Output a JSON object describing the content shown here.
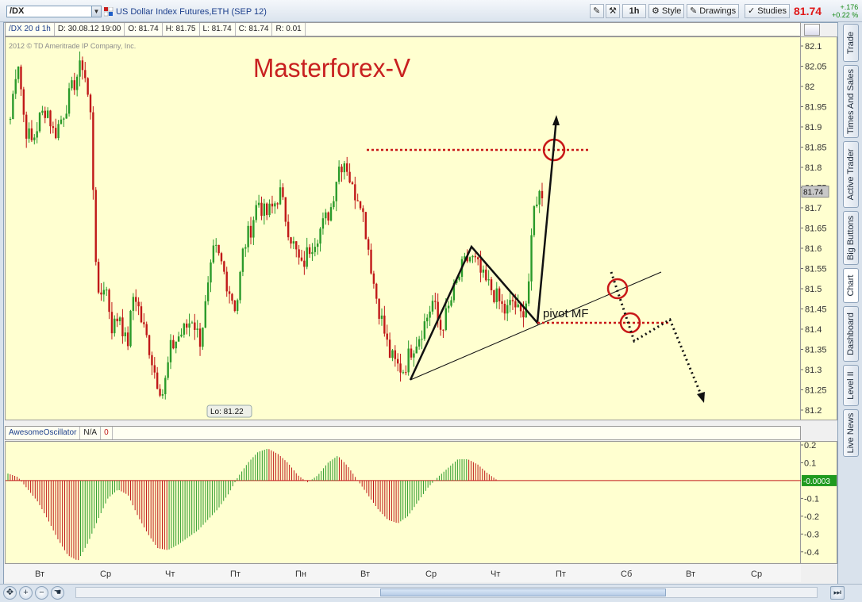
{
  "toolbar": {
    "symbol": "/DX",
    "description": "US Dollar Index Futures,ETH (SEP 12)",
    "interval_button": "1h",
    "style_button": "Style",
    "drawings_button": "Drawings",
    "studies_button": "Studies",
    "last_price": "81.74",
    "net_change": "+.176",
    "net_change_pct": "+0.22 %"
  },
  "info_bar": {
    "timeframe": "/DX 20 d 1h",
    "date": "D: 30.08.12 19:00",
    "open": "O: 81.74",
    "high": "H: 81.75",
    "low": "L: 81.74",
    "close": "C: 81.74",
    "range": "R: 0.01"
  },
  "watermark": "2012 © TD Ameritrade IP Company, Inc.",
  "overlay_title": "Masterforex-V",
  "annotations": {
    "pivot_label": "pivot MF",
    "low_label": "Lo: 81.22",
    "price_marker": "81.74",
    "osc_marker": "-0.0003"
  },
  "oscillator": {
    "name": "AwesomeOscillator",
    "param": "N/A",
    "value": "0"
  },
  "side_tabs": [
    "Trade",
    "Times And Sales",
    "Active Trader",
    "Big Buttons",
    "Chart",
    "Dashboard",
    "Level II",
    "Live News"
  ],
  "colors": {
    "bull": "#2a9a2a",
    "bear": "#c01818",
    "background": "#ffffd0",
    "title": "#c82020"
  },
  "chart_data": {
    "type": "candlestick",
    "y_axis_ticks": [
      "82.1",
      "82.05",
      "82",
      "81.95",
      "81.9",
      "81.85",
      "81.8",
      "81.75",
      "81.7",
      "81.65",
      "81.6",
      "81.55",
      "81.5",
      "81.45",
      "81.4",
      "81.35",
      "81.3",
      "81.25",
      "81.2"
    ],
    "x_axis_ticks": [
      "Вт",
      "Ср",
      "Чт",
      "Пт",
      "Пн",
      "Вт",
      "Ср",
      "Чт",
      "Пт",
      "Сб",
      "Вт",
      "Ср"
    ],
    "osc_axis_ticks": [
      "0.2",
      "0.1",
      "-0.1",
      "-0.2",
      "-0.3",
      "-0.4"
    ],
    "ylim": [
      81.2,
      82.1
    ],
    "osc_ylim": [
      -0.45,
      0.2
    ],
    "close_path": [
      81.92,
      82.08,
      81.9,
      81.86,
      81.92,
      81.95,
      81.88,
      81.92,
      81.97,
      82.02,
      82.06,
      81.93,
      81.46,
      81.52,
      81.4,
      81.44,
      81.35,
      81.5,
      81.42,
      81.36,
      81.28,
      81.24,
      81.35,
      81.38,
      81.4,
      81.43,
      81.37,
      81.48,
      81.6,
      81.56,
      81.5,
      81.45,
      81.6,
      81.65,
      81.72,
      81.68,
      81.7,
      81.74,
      81.66,
      81.6,
      81.55,
      81.6,
      81.63,
      81.66,
      81.7,
      81.8,
      81.82,
      81.74,
      81.73,
      81.62,
      81.5,
      81.42,
      81.34,
      81.31,
      81.3,
      81.35,
      81.38,
      81.42,
      81.47,
      81.4,
      81.44,
      81.5,
      81.55,
      81.58,
      81.56,
      81.52,
      81.5,
      81.47,
      81.44,
      81.47,
      81.43,
      81.48,
      81.72,
      81.74
    ],
    "ao_path": [
      0.04,
      0.02,
      -0.05,
      -0.12,
      -0.22,
      -0.33,
      -0.42,
      -0.45,
      -0.35,
      -0.22,
      -0.1,
      -0.05,
      -0.08,
      -0.2,
      -0.3,
      -0.38,
      -0.39,
      -0.36,
      -0.32,
      -0.28,
      -0.22,
      -0.16,
      -0.08,
      0.02,
      0.1,
      0.16,
      0.18,
      0.15,
      0.1,
      0.03,
      -0.01,
      0.03,
      0.1,
      0.14,
      0.08,
      0.0,
      -0.08,
      -0.16,
      -0.22,
      -0.24,
      -0.2,
      -0.12,
      -0.04,
      0.02,
      0.07,
      0.12,
      0.12,
      0.09,
      0.04,
      0.0,
      0.0,
      0.0,
      0.0
    ],
    "levels": {
      "resistance": 81.845,
      "pivot": 81.415,
      "low": 81.22
    }
  }
}
